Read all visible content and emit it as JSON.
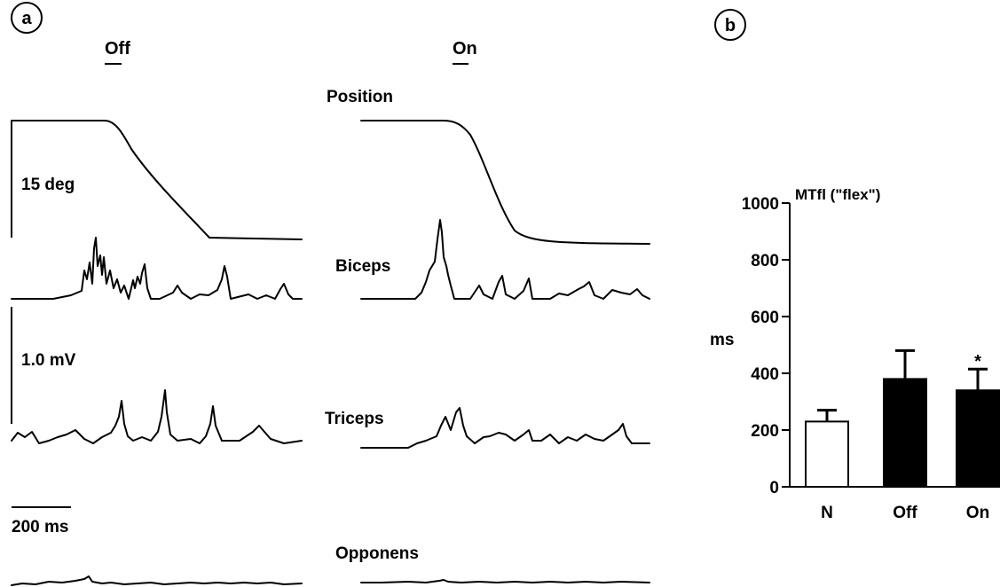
{
  "panel_a": {
    "letter": "a",
    "conditions": {
      "off": "Off",
      "on": "On"
    },
    "channels": {
      "position": "Position",
      "biceps": "Biceps",
      "triceps": "Triceps",
      "opponens": "Opponens"
    },
    "scales": {
      "angle": "15 deg",
      "voltage": "1.0 mV",
      "time": "200 ms"
    }
  },
  "panel_b": {
    "letter": "b"
  },
  "chart_data": {
    "type": "bar",
    "title": "MTfl (\"flex\")",
    "xlabel": "",
    "ylabel": "ms",
    "categories": [
      "N",
      "Off",
      "On"
    ],
    "values": [
      230,
      380,
      340
    ],
    "error_upper": [
      270,
      480,
      415
    ],
    "fill_colors": [
      "#ffffff",
      "#000000",
      "#000000"
    ],
    "significance": [
      "",
      "",
      "*"
    ],
    "ylim": [
      0,
      1000
    ],
    "yticks": [
      0,
      200,
      400,
      600,
      800,
      1000
    ],
    "grid": false,
    "legend": "none"
  }
}
